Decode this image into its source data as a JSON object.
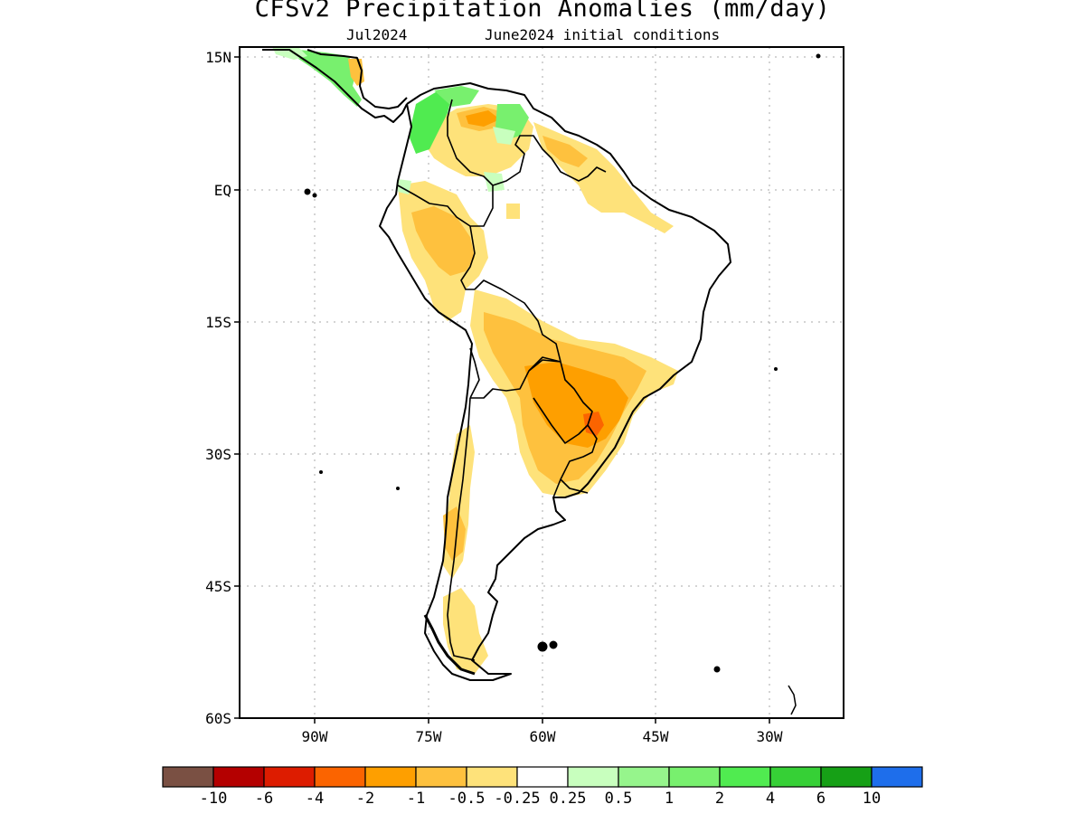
{
  "title": "CFSv2 Precipitation Anomalies (mm/day)",
  "subtitle_left": "Jul2024",
  "subtitle_right": "June2024 initial conditions",
  "lat_ticks": [
    "15N",
    "EQ",
    "15S",
    "30S",
    "45S",
    "60S"
  ],
  "lon_ticks": [
    "90W",
    "75W",
    "60W",
    "45W",
    "30W"
  ],
  "colorbar": {
    "colors": [
      "#7a5043",
      "#b40000",
      "#dd1c00",
      "#fb6400",
      "#fe9f00",
      "#fec13e",
      "#fee27a",
      "#ffffff",
      "#c8ffbe",
      "#96f58c",
      "#78f06e",
      "#50eb50",
      "#36d036",
      "#16a016",
      "#1e6eeb"
    ],
    "labels": [
      "-10",
      "-6",
      "-4",
      "-2",
      "-1",
      "-0.5",
      "-0.25",
      "0.25",
      "0.5",
      "1",
      "2",
      "4",
      "6",
      "10"
    ]
  },
  "map_extent": {
    "lon": [
      -100,
      -20
    ],
    "lat": [
      -60,
      15
    ]
  }
}
